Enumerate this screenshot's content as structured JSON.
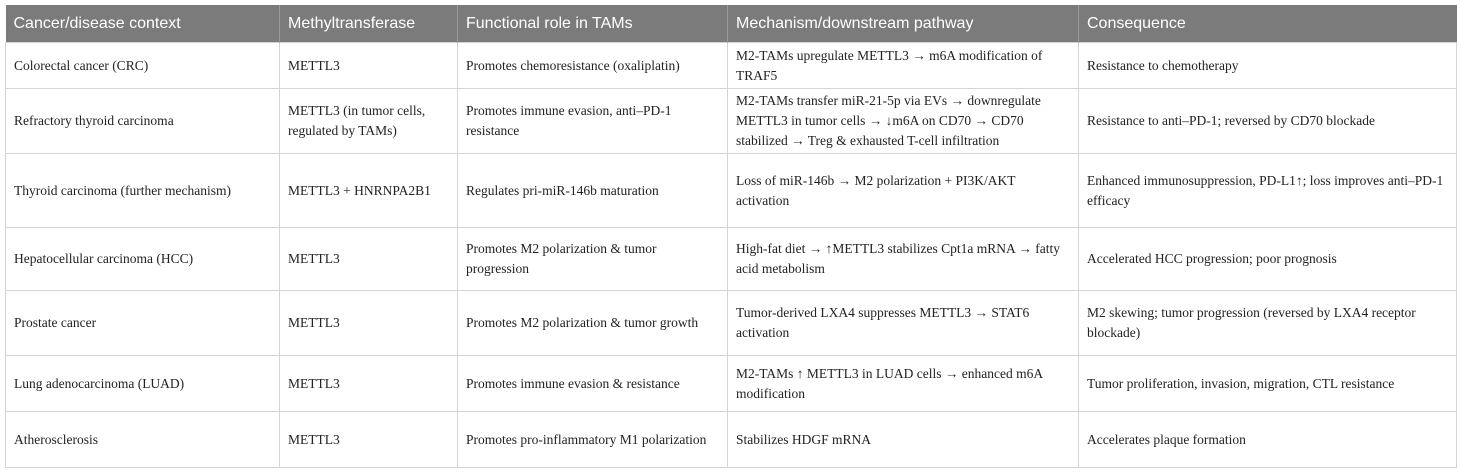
{
  "table": {
    "headers": [
      "Cancer/disease context",
      "Methyltransferase",
      "Functional role in TAMs",
      "Mechanism/downstream pathway",
      "Consequence"
    ],
    "rows": [
      [
        "Colorectal cancer (CRC)",
        "METTL3",
        "Promotes chemoresistance (oxaliplatin)",
        "M2-TAMs upregulate METTL3 → m6A modification of TRAF5",
        "Resistance to chemotherapy"
      ],
      [
        "Refractory thyroid carcinoma",
        "METTL3 (in tumor cells, regulated by TAMs)",
        "Promotes immune evasion, anti–PD-1 resistance",
        "M2-TAMs transfer miR-21-5p via EVs → downregulate METTL3 in tumor cells → ↓m6A on CD70 → CD70 stabilized → Treg & exhausted T-cell infiltration",
        "Resistance to anti–PD-1; reversed by CD70 blockade"
      ],
      [
        "Thyroid carcinoma (further mechanism)",
        "METTL3 + HNRNPA2B1",
        "Regulates pri-miR-146b maturation",
        "Loss of miR-146b → M2 polarization + PI3K/AKT activation",
        "Enhanced immunosuppression, PD-L1↑; loss improves anti–PD-1 efficacy"
      ],
      [
        "Hepatocellular carcinoma (HCC)",
        "METTL3",
        "Promotes M2 polarization & tumor progression",
        "High-fat diet → ↑METTL3 stabilizes Cpt1a mRNA → fatty acid metabolism",
        "Accelerated HCC progression; poor prognosis"
      ],
      [
        "Prostate cancer",
        "METTL3",
        "Promotes M2 polarization & tumor growth",
        "Tumor-derived LXA4 suppresses METTL3 → STAT6 activation",
        "M2 skewing; tumor progression (reversed by LXA4 receptor blockade)"
      ],
      [
        "Lung adenocarcinoma (LUAD)",
        "METTL3",
        "Promotes immune evasion & resistance",
        "M2-TAMs ↑ METTL3 in LUAD cells → enhanced m6A modification",
        "Tumor proliferation, invasion, migration, CTL resistance"
      ],
      [
        "Atherosclerosis",
        "METTL3",
        "Promotes pro-inflammatory M1 polarization",
        "Stabilizes HDGF mRNA",
        "Accelerates plaque formation"
      ]
    ]
  }
}
